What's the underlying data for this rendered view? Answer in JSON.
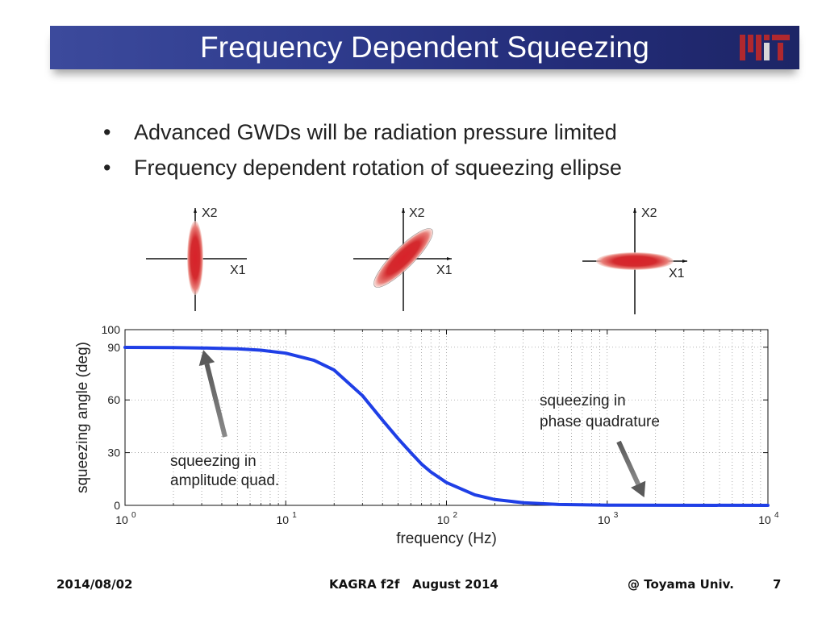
{
  "header": {
    "title": "Frequency Dependent Squeezing",
    "logo_text": "MIT",
    "background_color": "#2a3585"
  },
  "bullets": [
    "Advanced GWDs will be radiation pressure limited",
    "Frequency dependent rotation of squeezing ellipse"
  ],
  "diagrams": [
    {
      "x_label": "X1",
      "y_label": "X2",
      "ellipse": "vertical"
    },
    {
      "x_label": "X1",
      "y_label": "X2",
      "ellipse": "tilted-45"
    },
    {
      "x_label": "X1",
      "y_label": "X2",
      "ellipse": "horizontal"
    }
  ],
  "chart_data": {
    "type": "line",
    "xlabel": "frequency (Hz)",
    "ylabel": "squeezing angle (deg)",
    "x_scale": "log",
    "xlim": [
      1,
      10000
    ],
    "ylim": [
      0,
      100
    ],
    "x_ticks": [
      1,
      10,
      100,
      1000,
      10000
    ],
    "y_ticks": [
      0,
      30,
      60,
      90,
      100
    ],
    "grid": true,
    "line_color": "#1f3fe6",
    "series": [
      {
        "x": [
          1,
          2,
          3,
          5,
          7,
          10,
          15,
          20,
          30,
          40,
          50,
          60,
          70,
          80,
          100,
          150,
          200,
          300,
          500,
          1000,
          10000
        ],
        "y": [
          89.9,
          89.8,
          89.6,
          89.1,
          88.3,
          86.6,
          82.5,
          77.0,
          62.5,
          48.5,
          38.0,
          30.0,
          23.5,
          19.0,
          13.0,
          6.0,
          3.3,
          1.5,
          0.5,
          0.1,
          0.0
        ]
      }
    ],
    "annotations": [
      {
        "text": "squeezing in amplitude quad.",
        "lines": [
          "squeezing in",
          "amplitude quad."
        ],
        "arrow_to": {
          "x": 3,
          "y": 88
        }
      },
      {
        "text": "squeezing in phase quadrature",
        "lines": [
          "squeezing in",
          "phase quadrature"
        ],
        "arrow_to": {
          "x": 1700,
          "y": 5
        }
      }
    ]
  },
  "footer": {
    "date": "2014/08/02",
    "event": "KAGRA f2f   August 2014",
    "affiliation": "@ Toyama Univ.",
    "page_number": "7"
  }
}
